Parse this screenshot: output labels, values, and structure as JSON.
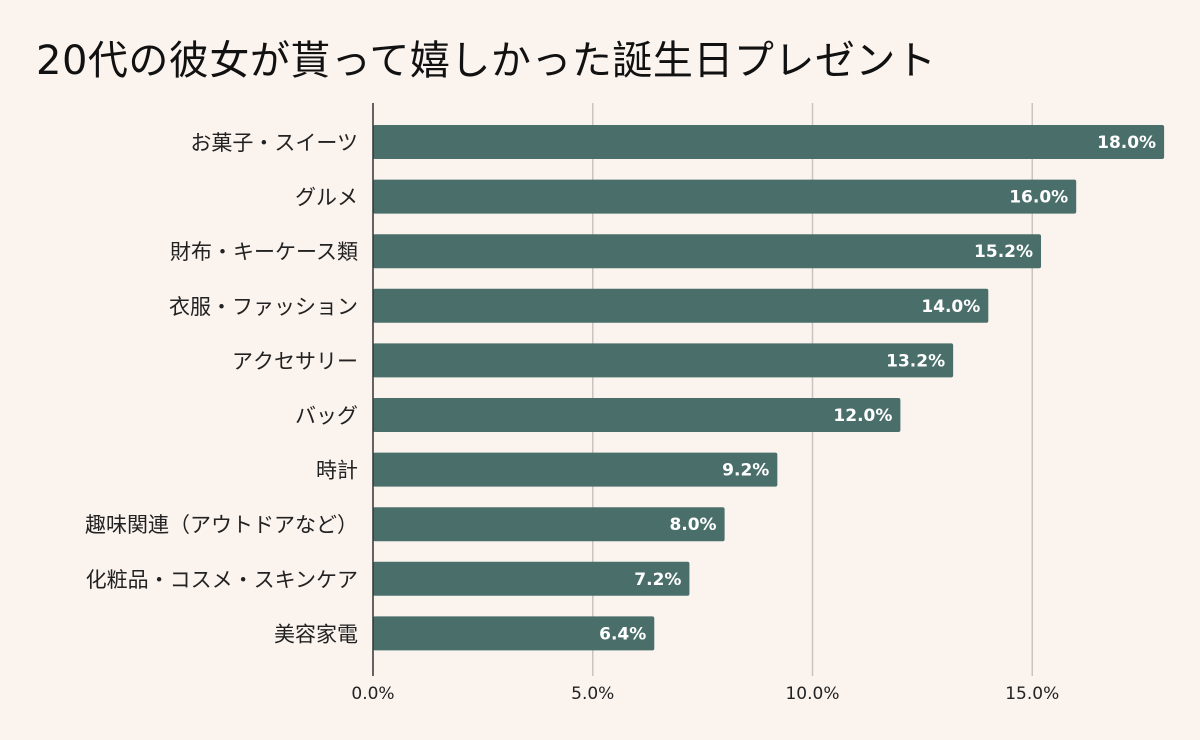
{
  "chart_data": {
    "type": "bar",
    "orientation": "horizontal",
    "title": "20代の彼女が貰って嬉しかった誕生日プレゼント",
    "categories": [
      "お菓子・スイーツ",
      "グルメ",
      "財布・キーケース類",
      "衣服・ファッション",
      "アクセサリー",
      "バッグ",
      "時計",
      "趣味関連（アウトドアなど）",
      "化粧品・コスメ・スキンケア",
      "美容家電"
    ],
    "values": [
      18.0,
      16.0,
      15.2,
      14.0,
      13.2,
      12.0,
      9.2,
      8.0,
      7.2,
      6.4
    ],
    "value_labels": [
      "18.0%",
      "16.0%",
      "15.2%",
      "14.0%",
      "13.2%",
      "12.0%",
      "9.2%",
      "8.0%",
      "7.2%",
      "6.4%"
    ],
    "xlim": [
      0,
      18
    ],
    "xticks": [
      0,
      5,
      10,
      15
    ],
    "xtick_labels": [
      "0.0%",
      "5.0%",
      "10.0%",
      "15.0%"
    ],
    "grid": true,
    "bar_color": "#4a6f6b",
    "background_color": "#fbf3ee",
    "legend": "none"
  }
}
